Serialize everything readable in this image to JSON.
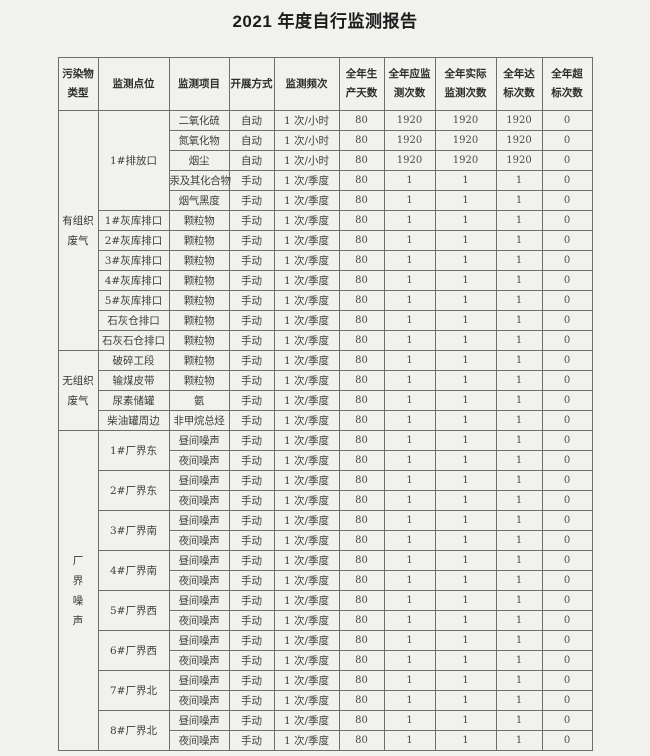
{
  "page": {
    "title": "2021 年度自行监测报告"
  },
  "table": {
    "headers": [
      "污染物\n类型",
      "监测点位",
      "监测项目",
      "开展方式",
      "监测频次",
      "全年生\n产天数",
      "全年应监\n测次数",
      "全年实际\n监测次数",
      "全年达\n标次数",
      "全年超\n标次数"
    ],
    "columns": [
      "item",
      "mode",
      "freq",
      "days",
      "required",
      "actual",
      "compliant",
      "exceed"
    ],
    "groups": [
      {
        "label": "有组织\n废气",
        "points": [
          {
            "label": "1#排放口",
            "rows": [
              [
                "二氧化硫",
                "自动",
                "1 次/小时",
                "80",
                "1920",
                "1920",
                "1920",
                "0"
              ],
              [
                "氮氧化物",
                "自动",
                "1 次/小时",
                "80",
                "1920",
                "1920",
                "1920",
                "0"
              ],
              [
                "烟尘",
                "自动",
                "1 次/小时",
                "80",
                "1920",
                "1920",
                "1920",
                "0"
              ],
              [
                "汞及其化合物",
                "手动",
                "1 次/季度",
                "80",
                "1",
                "1",
                "1",
                "0"
              ],
              [
                "烟气黑度",
                "手动",
                "1 次/季度",
                "80",
                "1",
                "1",
                "1",
                "0"
              ]
            ]
          },
          {
            "label": "1#灰库排口",
            "rows": [
              [
                "颗粒物",
                "手动",
                "1 次/季度",
                "80",
                "1",
                "1",
                "1",
                "0"
              ]
            ]
          },
          {
            "label": "2#灰库排口",
            "rows": [
              [
                "颗粒物",
                "手动",
                "1 次/季度",
                "80",
                "1",
                "1",
                "1",
                "0"
              ]
            ]
          },
          {
            "label": "3#灰库排口",
            "rows": [
              [
                "颗粒物",
                "手动",
                "1 次/季度",
                "80",
                "1",
                "1",
                "1",
                "0"
              ]
            ]
          },
          {
            "label": "4#灰库排口",
            "rows": [
              [
                "颗粒物",
                "手动",
                "1 次/季度",
                "80",
                "1",
                "1",
                "1",
                "0"
              ]
            ]
          },
          {
            "label": "5#灰库排口",
            "rows": [
              [
                "颗粒物",
                "手动",
                "1 次/季度",
                "80",
                "1",
                "1",
                "1",
                "0"
              ]
            ]
          },
          {
            "label": "石灰仓排口",
            "rows": [
              [
                "颗粒物",
                "手动",
                "1 次/季度",
                "80",
                "1",
                "1",
                "1",
                "0"
              ]
            ]
          },
          {
            "label": "石灰石仓排口",
            "rows": [
              [
                "颗粒物",
                "手动",
                "1 次/季度",
                "80",
                "1",
                "1",
                "1",
                "0"
              ]
            ]
          }
        ]
      },
      {
        "label": "无组织\n废气",
        "points": [
          {
            "label": "破碎工段",
            "rows": [
              [
                "颗粒物",
                "手动",
                "1 次/季度",
                "80",
                "1",
                "1",
                "1",
                "0"
              ]
            ]
          },
          {
            "label": "输煤皮带",
            "rows": [
              [
                "颗粒物",
                "手动",
                "1 次/季度",
                "80",
                "1",
                "1",
                "1",
                "0"
              ]
            ]
          },
          {
            "label": "尿素储罐",
            "rows": [
              [
                "氨",
                "手动",
                "1 次/季度",
                "80",
                "1",
                "1",
                "1",
                "0"
              ]
            ]
          },
          {
            "label": "柴油罐周边",
            "rows": [
              [
                "非甲烷总烃",
                "手动",
                "1 次/季度",
                "80",
                "1",
                "1",
                "1",
                "0"
              ]
            ]
          }
        ]
      },
      {
        "label": "厂\n界\n噪\n声",
        "points": [
          {
            "label": "1#厂界东",
            "rows": [
              [
                "昼间噪声",
                "手动",
                "1 次/季度",
                "80",
                "1",
                "1",
                "1",
                "0"
              ],
              [
                "夜间噪声",
                "手动",
                "1 次/季度",
                "80",
                "1",
                "1",
                "1",
                "0"
              ]
            ]
          },
          {
            "label": "2#厂界东",
            "rows": [
              [
                "昼间噪声",
                "手动",
                "1 次/季度",
                "80",
                "1",
                "1",
                "1",
                "0"
              ],
              [
                "夜间噪声",
                "手动",
                "1 次/季度",
                "80",
                "1",
                "1",
                "1",
                "0"
              ]
            ]
          },
          {
            "label": "3#厂界南",
            "rows": [
              [
                "昼间噪声",
                "手动",
                "1 次/季度",
                "80",
                "1",
                "1",
                "1",
                "0"
              ],
              [
                "夜间噪声",
                "手动",
                "1 次/季度",
                "80",
                "1",
                "1",
                "1",
                "0"
              ]
            ]
          },
          {
            "label": "4#厂界南",
            "rows": [
              [
                "昼间噪声",
                "手动",
                "1 次/季度",
                "80",
                "1",
                "1",
                "1",
                "0"
              ],
              [
                "夜间噪声",
                "手动",
                "1 次/季度",
                "80",
                "1",
                "1",
                "1",
                "0"
              ]
            ]
          },
          {
            "label": "5#厂界西",
            "rows": [
              [
                "昼间噪声",
                "手动",
                "1 次/季度",
                "80",
                "1",
                "1",
                "1",
                "0"
              ],
              [
                "夜间噪声",
                "手动",
                "1 次/季度",
                "80",
                "1",
                "1",
                "1",
                "0"
              ]
            ]
          },
          {
            "label": "6#厂界西",
            "rows": [
              [
                "昼间噪声",
                "手动",
                "1 次/季度",
                "80",
                "1",
                "1",
                "1",
                "0"
              ],
              [
                "夜间噪声",
                "手动",
                "1 次/季度",
                "80",
                "1",
                "1",
                "1",
                "0"
              ]
            ]
          },
          {
            "label": "7#厂界北",
            "rows": [
              [
                "昼间噪声",
                "手动",
                "1 次/季度",
                "80",
                "1",
                "1",
                "1",
                "0"
              ],
              [
                "夜间噪声",
                "手动",
                "1 次/季度",
                "80",
                "1",
                "1",
                "1",
                "0"
              ]
            ]
          },
          {
            "label": "8#厂界北",
            "rows": [
              [
                "昼间噪声",
                "手动",
                "1 次/季度",
                "80",
                "1",
                "1",
                "1",
                "0"
              ],
              [
                "夜间噪声",
                "手动",
                "1 次/季度",
                "80",
                "1",
                "1",
                "1",
                "0"
              ]
            ]
          }
        ]
      }
    ]
  }
}
